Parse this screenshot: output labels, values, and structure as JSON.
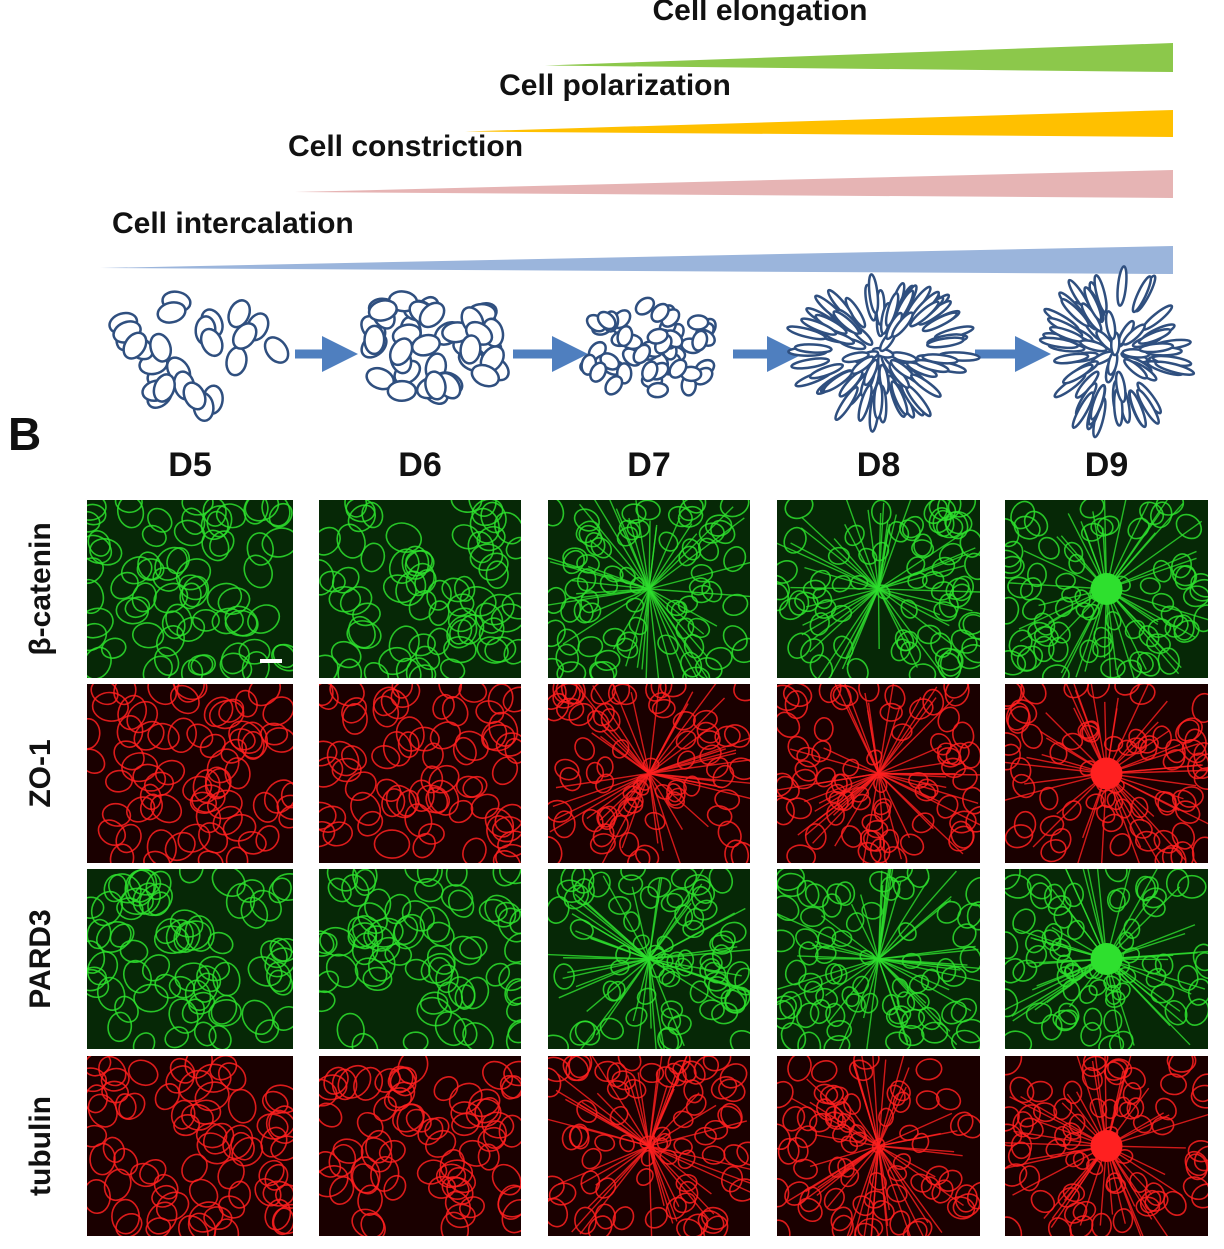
{
  "gradients": [
    {
      "label": "Cell elongation",
      "color": "#8cc84b"
    },
    {
      "label": "Cell polarization",
      "color": "#ffc000"
    },
    {
      "label": "Cell constriction",
      "color": "#e6b4b4"
    },
    {
      "label": "Cell intercalation",
      "color": "#9bb5dc"
    }
  ],
  "panel_label": "B",
  "columns": [
    "D5",
    "D6",
    "D7",
    "D8",
    "D9"
  ],
  "rows": [
    {
      "label": "β-catenin",
      "color": "#2ee02e"
    },
    {
      "label": "ZO-1",
      "color": "#ff2020"
    },
    {
      "label": "PARD3",
      "color": "#2ee02e"
    },
    {
      "label": "tubulin",
      "color": "#ff2020"
    }
  ]
}
